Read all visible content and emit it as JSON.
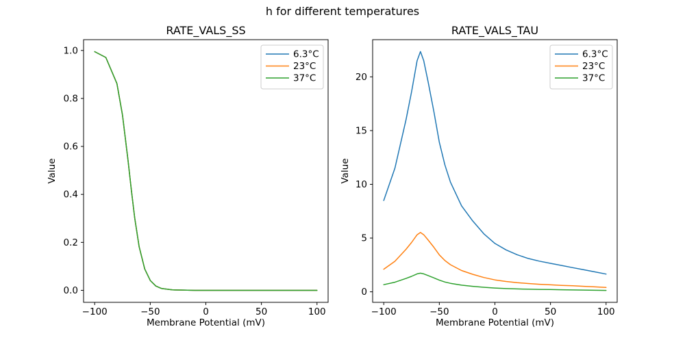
{
  "figure": {
    "suptitle": "h for different temperatures"
  },
  "palette": {
    "series_blue": "#1f77b4",
    "series_orange": "#ff7f0e",
    "series_green": "#2ca02c",
    "axes_edge": "#000000",
    "legend_edge": "#cccccc",
    "background": "#ffffff"
  },
  "chart_data": [
    {
      "type": "line",
      "title": "RATE_VALS_SS",
      "xlabel": "Membrane Potential (mV)",
      "ylabel": "Value",
      "grid": false,
      "legend_position": "upper right",
      "legend_entries": [
        "6.3°C",
        "23°C",
        "37°C"
      ],
      "xlim": [
        -110,
        110
      ],
      "ylim": [
        -0.05,
        1.045
      ],
      "xticks": [
        -100,
        -50,
        0,
        50,
        100
      ],
      "xtick_labels": [
        "−100",
        "−50",
        "0",
        "50",
        "100"
      ],
      "yticks": [
        0.0,
        0.2,
        0.4,
        0.6,
        0.8,
        1.0
      ],
      "ytick_labels": [
        "0.0",
        "0.2",
        "0.4",
        "0.6",
        "0.8",
        "1.0"
      ],
      "x": [
        -100,
        -90,
        -80,
        -75,
        -70,
        -67,
        -64,
        -60,
        -55,
        -50,
        -45,
        -40,
        -30,
        -20,
        -10,
        0,
        10,
        20,
        30,
        40,
        50,
        60,
        70,
        80,
        90,
        100
      ],
      "series": [
        {
          "name": "6.3°C",
          "color": "#1f77b4",
          "values": [
            0.995,
            0.971,
            0.862,
            0.731,
            0.542,
            0.417,
            0.303,
            0.182,
            0.089,
            0.041,
            0.018,
            0.008,
            0.002,
            0.001,
            0,
            0,
            0,
            0,
            0,
            0,
            0,
            0,
            0,
            0,
            0,
            0
          ]
        },
        {
          "name": "23°C",
          "color": "#ff7f0e",
          "values": [
            0.995,
            0.971,
            0.862,
            0.731,
            0.542,
            0.417,
            0.303,
            0.182,
            0.089,
            0.041,
            0.018,
            0.008,
            0.002,
            0.001,
            0,
            0,
            0,
            0,
            0,
            0,
            0,
            0,
            0,
            0,
            0,
            0
          ]
        },
        {
          "name": "37°C",
          "color": "#2ca02c",
          "values": [
            0.995,
            0.971,
            0.862,
            0.731,
            0.542,
            0.417,
            0.303,
            0.182,
            0.089,
            0.041,
            0.018,
            0.008,
            0.002,
            0.001,
            0,
            0,
            0,
            0,
            0,
            0,
            0,
            0,
            0,
            0,
            0,
            0
          ]
        }
      ],
      "note": "All three temperature curves coincide; only the last-drawn green (37°C) curve is visible."
    },
    {
      "type": "line",
      "title": "RATE_VALS_TAU",
      "xlabel": "Membrane Potential (mV)",
      "ylabel": "Value",
      "grid": false,
      "legend_position": "upper right",
      "legend_entries": [
        "6.3°C",
        "23°C",
        "37°C"
      ],
      "xlim": [
        -110,
        110
      ],
      "ylim": [
        -0.98,
        23.46
      ],
      "xticks": [
        -100,
        -50,
        0,
        50,
        100
      ],
      "xtick_labels": [
        "−100",
        "−50",
        "0",
        "50",
        "100"
      ],
      "yticks": [
        0,
        5,
        10,
        15,
        20
      ],
      "ytick_labels": [
        "0",
        "5",
        "10",
        "15",
        "20"
      ],
      "x": [
        -100,
        -90,
        -80,
        -75,
        -70,
        -67,
        -64,
        -60,
        -55,
        -50,
        -45,
        -40,
        -30,
        -20,
        -10,
        0,
        10,
        20,
        30,
        40,
        50,
        60,
        70,
        80,
        90,
        100
      ],
      "series": [
        {
          "name": "6.3°C",
          "color": "#1f77b4",
          "values": [
            8.5,
            11.5,
            16.0,
            18.6,
            21.5,
            22.35,
            21.5,
            19.5,
            16.8,
            13.9,
            11.8,
            10.2,
            8.0,
            6.6,
            5.4,
            4.5,
            3.9,
            3.45,
            3.1,
            2.85,
            2.65,
            2.45,
            2.25,
            2.05,
            1.85,
            1.65
          ]
        },
        {
          "name": "23°C",
          "color": "#ff7f0e",
          "values": [
            2.1,
            2.84,
            3.95,
            4.59,
            5.31,
            5.52,
            5.31,
            4.81,
            4.15,
            3.43,
            2.91,
            2.52,
            1.98,
            1.63,
            1.33,
            1.11,
            0.96,
            0.85,
            0.77,
            0.7,
            0.65,
            0.6,
            0.56,
            0.51,
            0.46,
            0.41
          ]
        },
        {
          "name": "37°C",
          "color": "#2ca02c",
          "values": [
            0.66,
            0.89,
            1.24,
            1.44,
            1.67,
            1.73,
            1.67,
            1.51,
            1.3,
            1.08,
            0.91,
            0.79,
            0.62,
            0.51,
            0.42,
            0.35,
            0.3,
            0.27,
            0.24,
            0.22,
            0.21,
            0.19,
            0.17,
            0.16,
            0.14,
            0.13
          ]
        }
      ],
      "note": "Peak tau: 22.35 at -67 mV (6.3°C), 5.5 (23°C), 1.7 (37°C)."
    }
  ]
}
